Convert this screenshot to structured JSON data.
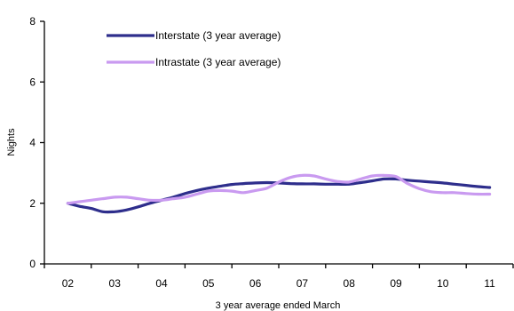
{
  "chart_data": {
    "type": "line",
    "title": "",
    "xlabel": "3 year average ended March",
    "ylabel": "Nights",
    "categories": [
      "02",
      "03",
      "04",
      "05",
      "06",
      "07",
      "08",
      "09",
      "10",
      "11"
    ],
    "ylim": [
      0,
      8
    ],
    "yticks": [
      0,
      2,
      4,
      6,
      8
    ],
    "grid": false,
    "legend_position": "top-left",
    "series": [
      {
        "name": "Interstate (3 year average)",
        "color": "#2E2E8C",
        "x": [
          0,
          0.25,
          0.5,
          0.75,
          1.0,
          1.25,
          1.5,
          1.75,
          2.0,
          2.25,
          2.5,
          2.75,
          3.0,
          3.25,
          3.5,
          3.75,
          4.0,
          4.25,
          4.5,
          4.75,
          5.0,
          5.25,
          5.5,
          5.75,
          6.0,
          6.25,
          6.5,
          6.75,
          7.0,
          7.25,
          7.5,
          7.75,
          8.0,
          8.25,
          8.5,
          8.75,
          9.0
        ],
        "y": [
          2.0,
          1.9,
          1.83,
          1.72,
          1.72,
          1.78,
          1.88,
          2.0,
          2.1,
          2.2,
          2.32,
          2.42,
          2.5,
          2.56,
          2.62,
          2.65,
          2.67,
          2.68,
          2.67,
          2.65,
          2.64,
          2.64,
          2.63,
          2.63,
          2.63,
          2.68,
          2.74,
          2.8,
          2.8,
          2.76,
          2.73,
          2.7,
          2.67,
          2.63,
          2.59,
          2.55,
          2.52
        ]
      },
      {
        "name": "Intrastate (3 year average)",
        "color": "#C99AF0",
        "x": [
          0,
          0.25,
          0.5,
          0.75,
          1.0,
          1.25,
          1.5,
          1.75,
          2.0,
          2.25,
          2.5,
          2.75,
          3.0,
          3.25,
          3.5,
          3.75,
          4.0,
          4.25,
          4.5,
          4.75,
          5.0,
          5.25,
          5.5,
          5.75,
          6.0,
          6.25,
          6.5,
          6.75,
          7.0,
          7.25,
          7.5,
          7.75,
          8.0,
          8.25,
          8.5,
          8.75,
          9.0
        ],
        "y": [
          2.0,
          2.05,
          2.1,
          2.15,
          2.2,
          2.2,
          2.15,
          2.1,
          2.1,
          2.15,
          2.2,
          2.3,
          2.4,
          2.42,
          2.4,
          2.35,
          2.42,
          2.5,
          2.7,
          2.85,
          2.92,
          2.9,
          2.8,
          2.72,
          2.7,
          2.8,
          2.9,
          2.92,
          2.88,
          2.65,
          2.48,
          2.38,
          2.35,
          2.35,
          2.32,
          2.3,
          2.3
        ]
      }
    ]
  }
}
